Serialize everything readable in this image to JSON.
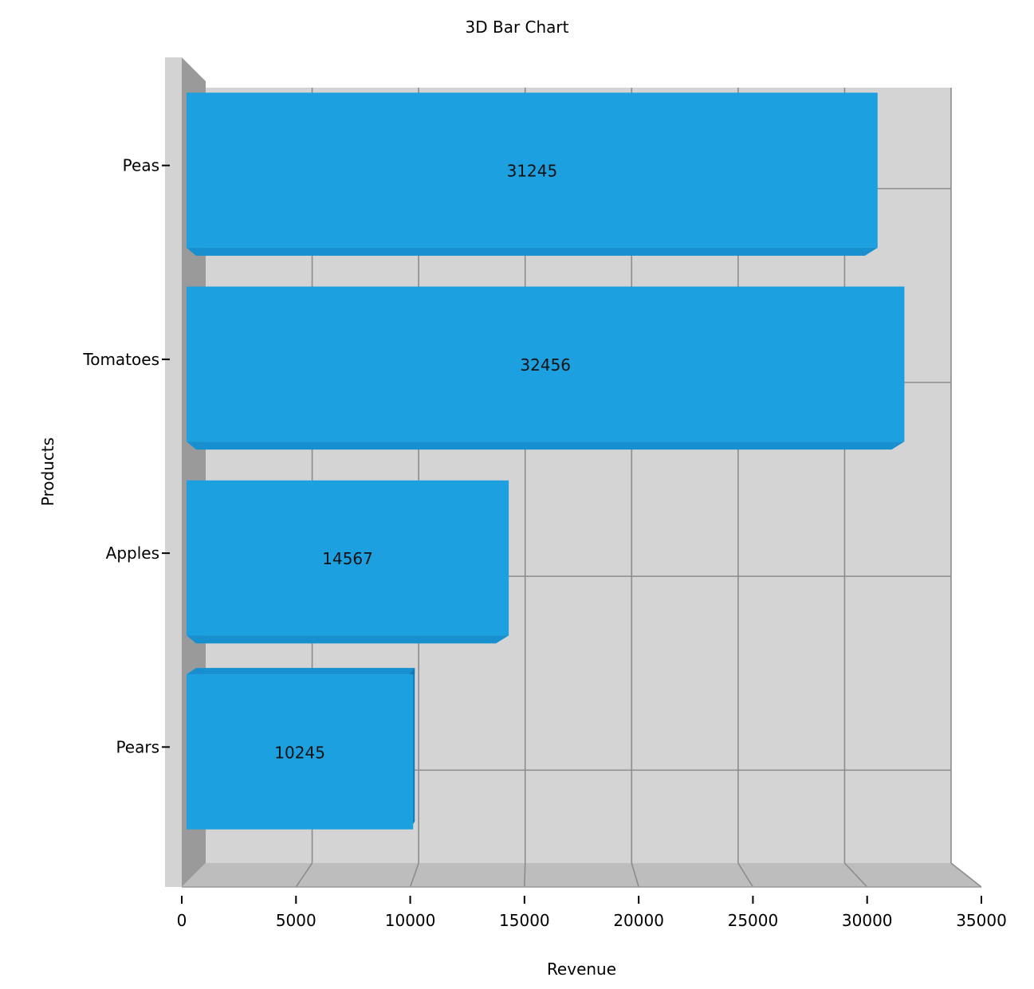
{
  "chart_data": {
    "type": "bar",
    "orientation": "horizontal",
    "style": "3d",
    "title": "3D Bar Chart",
    "xlabel": "Revenue",
    "ylabel": "Products",
    "categories": [
      "Peas",
      "Tomatoes",
      "Apples",
      "Pears"
    ],
    "values": [
      31245,
      32456,
      14567,
      10245
    ],
    "data_labels": [
      "31245",
      "32456",
      "14567",
      "10245"
    ],
    "xlim": [
      0,
      35000
    ],
    "x_ticks": [
      0,
      5000,
      10000,
      15000,
      20000,
      25000,
      30000,
      35000
    ],
    "x_tick_labels": [
      "0",
      "5000",
      "10000",
      "15000",
      "20000",
      "25000",
      "30000",
      "35000"
    ],
    "grid": true,
    "legend": "none",
    "colors": {
      "bar_front": "#1ca0e0",
      "bar_top": "#1890d0",
      "bar_side": "#1178b4",
      "back_wall": "#d4d4d4",
      "floor": "#bdbdbd",
      "side_wall_outer": "#d3d3d3",
      "side_wall_inner": "#9a9a9a",
      "grid_line": "#8c8c8c"
    }
  }
}
